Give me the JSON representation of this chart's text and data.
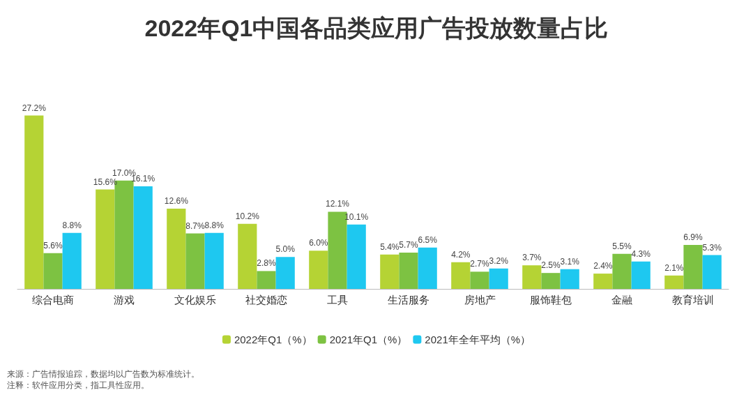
{
  "chart_data": {
    "type": "bar",
    "title": "2022年Q1中国各品类应用广告投放数量占比",
    "categories": [
      "综合电商",
      "游戏",
      "文化娱乐",
      "社交婚恋",
      "工具",
      "生活服务",
      "房地产",
      "服饰鞋包",
      "金融",
      "教育培训"
    ],
    "series": [
      {
        "name": "2022年Q1（%）",
        "color": "#b5d334",
        "values": [
          27.2,
          15.6,
          12.6,
          10.2,
          6.0,
          5.4,
          4.2,
          3.7,
          2.4,
          2.1
        ],
        "value_labels": [
          "27.2%",
          "15.6%",
          "12.6%",
          "10.2%",
          "6.0%",
          "5.4%",
          "4.2%",
          "3.7%",
          "2.4%",
          "2.1%"
        ]
      },
      {
        "name": "2021年Q1（%）",
        "color": "#7dc242",
        "values": [
          5.6,
          17.0,
          8.7,
          2.8,
          12.1,
          5.7,
          2.7,
          2.5,
          5.5,
          6.9
        ],
        "value_labels": [
          "5.6%",
          "17.0%",
          "8.7%",
          "2.8%",
          "12.1%",
          "5.7%",
          "2.7%",
          "2.5%",
          "5.5%",
          "6.9%"
        ]
      },
      {
        "name": "2021年全年平均（%）",
        "color": "#1ec8f0",
        "values": [
          8.8,
          16.1,
          8.8,
          5.0,
          10.1,
          6.5,
          3.2,
          3.1,
          4.3,
          5.3
        ],
        "value_labels": [
          "8.8%",
          "16.1%",
          "8.8%",
          "5.0%",
          "10.1%",
          "6.5%",
          "3.2%",
          "3.1%",
          "4.3%",
          "5.3%"
        ]
      }
    ],
    "legend": "bottom",
    "annotations": [
      "来源：广告情报追踪，数据均以广告数为标准统计。",
      "注释：软件应用分类，指工具性应用。"
    ]
  }
}
